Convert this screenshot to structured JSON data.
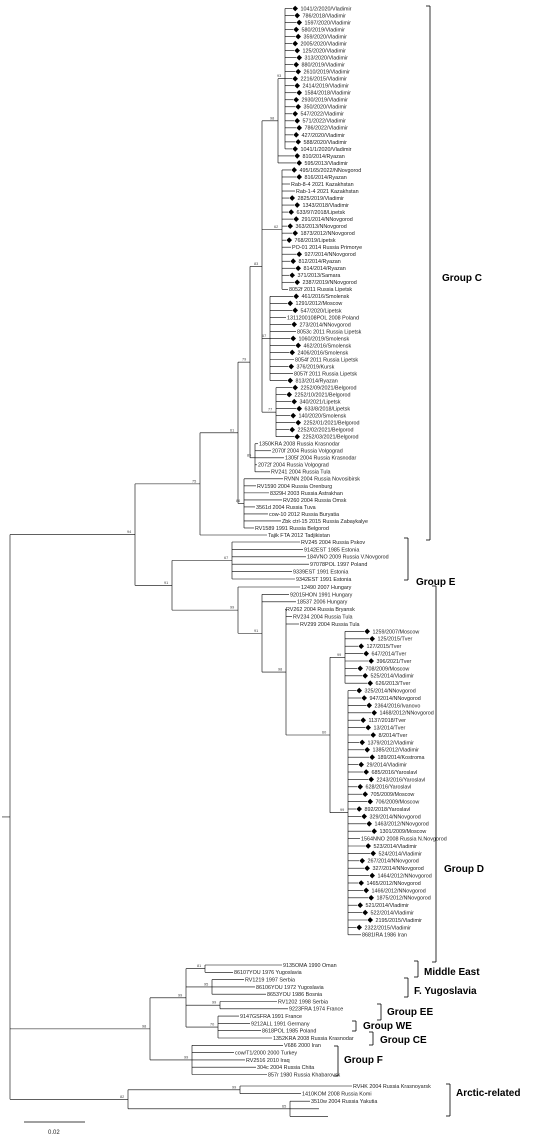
{
  "groups": [
    {
      "name": "Group C"
    },
    {
      "name": "Group E"
    },
    {
      "name": "Group D"
    },
    {
      "name": "Middle East"
    },
    {
      "name": "F. Yugoslavia"
    },
    {
      "name": "Group EE"
    },
    {
      "name": "Group WE"
    },
    {
      "name": "Group CE"
    },
    {
      "name": "Group F"
    },
    {
      "name": "Arctic-related"
    }
  ],
  "scale_label": "0.02",
  "taxa": [
    {
      "name": "1041/2/2020/Vladimir",
      "marked": true
    },
    {
      "name": "786/2018/Vladimir",
      "marked": true
    },
    {
      "name": "1597/2020/Vladimir",
      "marked": true
    },
    {
      "name": "580/2019/Vladimir",
      "marked": true
    },
    {
      "name": "359/2020/Vladimir",
      "marked": true
    },
    {
      "name": "2005/2020/Vladimir",
      "marked": true
    },
    {
      "name": "125/2020/Vladimir",
      "marked": true
    },
    {
      "name": "313/2020/Vladimir",
      "marked": true
    },
    {
      "name": "880/2019/Vladimir",
      "marked": true
    },
    {
      "name": "2610/2019/Vladimir",
      "marked": true
    },
    {
      "name": "2216/2015/Vladimir",
      "marked": true
    },
    {
      "name": "2414/2019/Vladimir",
      "marked": true
    },
    {
      "name": "1584/2018/Vladimir",
      "marked": true
    },
    {
      "name": "2930/2019/Vladimir",
      "marked": true
    },
    {
      "name": "350/2020/Vladimir",
      "marked": true
    },
    {
      "name": "547/2022/Vladimir",
      "marked": true
    },
    {
      "name": "571/2022/Vladimir",
      "marked": true
    },
    {
      "name": "786/2022/Vladimir",
      "marked": true
    },
    {
      "name": "427/2020/Vladimir",
      "marked": true
    },
    {
      "name": "588/2020/Vladimir",
      "marked": true
    },
    {
      "name": "1041/1/2020/Vladimir",
      "marked": true
    },
    {
      "name": "810/2014/Ryazan",
      "marked": true
    },
    {
      "name": "595/2013/Vladimir",
      "marked": true
    },
    {
      "name": "495/165/2022/NNovgorod",
      "marked": true
    },
    {
      "name": "816/2014/Ryazan",
      "marked": true
    },
    {
      "name": "Rab-8-4 2021 Kazakhstan",
      "marked": false
    },
    {
      "name": "Rab-1-4 2021 Kazakhstan",
      "marked": false
    },
    {
      "name": "2825/2019/Vladimir",
      "marked": true
    },
    {
      "name": "1343/2018/Vladimir",
      "marked": true
    },
    {
      "name": "633/97/2018/Lipetsk",
      "marked": true
    },
    {
      "name": "291/2014/NNovgorod",
      "marked": true
    },
    {
      "name": "363/2013/NNovgorod",
      "marked": true
    },
    {
      "name": "1873/2012/NNovgorod",
      "marked": true
    },
    {
      "name": "768/2019/Lipetsk",
      "marked": true
    },
    {
      "name": "PO-01 2014 Russia Primorye",
      "marked": false
    },
    {
      "name": "927/2014/NNovgorod",
      "marked": true
    },
    {
      "name": "812/2014/Ryazan",
      "marked": true
    },
    {
      "name": "814/2014/Ryazan",
      "marked": true
    },
    {
      "name": "371/2013/Samara",
      "marked": true
    },
    {
      "name": "2387/2019/NNovgorod",
      "marked": true
    },
    {
      "name": "8052f 2011 Russia Lipetsk",
      "marked": false
    },
    {
      "name": "461/2016/Smolensk",
      "marked": true
    },
    {
      "name": "1291/2012/Moscow",
      "marked": true
    },
    {
      "name": "547/2020/Lipetsk",
      "marked": true
    },
    {
      "name": "1311200108POL 2008 Poland",
      "marked": false
    },
    {
      "name": "273/2014/NNovgorod",
      "marked": true
    },
    {
      "name": "8053c 2011 Russia Lipetsk",
      "marked": false
    },
    {
      "name": "1060/2019/Smolensk",
      "marked": true
    },
    {
      "name": "462/2016/Smolensk",
      "marked": true
    },
    {
      "name": "2406/2016/Smolensk",
      "marked": true
    },
    {
      "name": "8054f 2011 Russia Lipetsk",
      "marked": false
    },
    {
      "name": "376/2019/Kursk",
      "marked": true
    },
    {
      "name": "8057f 2011 Russia Lipetsk",
      "marked": false
    },
    {
      "name": "813/2014/Ryazan",
      "marked": true
    },
    {
      "name": "2252/09/2021/Belgorod",
      "marked": true
    },
    {
      "name": "2252/10/2021/Belgorod",
      "marked": true
    },
    {
      "name": "340/2021/Lipetsk",
      "marked": true
    },
    {
      "name": "633/8/2018/Lipetsk",
      "marked": true
    },
    {
      "name": "140/2020/Smolensk",
      "marked": true
    },
    {
      "name": "2252/01/2021/Belgorod",
      "marked": true
    },
    {
      "name": "2252/02/2021/Belgorod",
      "marked": true
    },
    {
      "name": "2252/03/2021/Belgorod",
      "marked": true
    },
    {
      "name": "1350KRA 2008 Russia Krasnodar",
      "marked": false
    },
    {
      "name": "2070f 2004 Russia Volgograd",
      "marked": false
    },
    {
      "name": "1305f 2004 Russia Krasnodar",
      "marked": false
    },
    {
      "name": "2072f 2004 Russia Volgograd",
      "marked": false
    },
    {
      "name": "RV241 2004 Russia Tula",
      "marked": false
    },
    {
      "name": "RVNN 2004 Russia Novosibirsk",
      "marked": false
    },
    {
      "name": "RV1590 2004 Russia Orenburg",
      "marked": false
    },
    {
      "name": "8329H 2003 Russia Astrakhan",
      "marked": false
    },
    {
      "name": "RV260 2004 Russia Omsk",
      "marked": false
    },
    {
      "name": "3561d 2004 Russia Tuva",
      "marked": false
    },
    {
      "name": "cow-10 2012 Russia Buryatia",
      "marked": false
    },
    {
      "name": "Zbk ctrl-15 2015 Russia Zabaykalye",
      "marked": false
    },
    {
      "name": "RV1589 1991 Russia Belgorod",
      "marked": false
    },
    {
      "name": "Tajik FTA 2012 Tadjikistan",
      "marked": false
    },
    {
      "name": "RV245 2004 Russia Pskov",
      "marked": false
    },
    {
      "name": "9142EST 1985 Estonia",
      "marked": false
    },
    {
      "name": "184VNO 2009 Russia V.Novgorod",
      "marked": false
    },
    {
      "name": "97078POL 1997 Poland",
      "marked": false
    },
    {
      "name": "9339EST 1991 Estonia",
      "marked": false
    },
    {
      "name": "9342EST 1991 Estonia",
      "marked": false
    },
    {
      "name": "12490 2007 Hungary",
      "marked": false
    },
    {
      "name": "92015HON 1991 Hungary",
      "marked": false
    },
    {
      "name": "18537 2006 Hungary",
      "marked": false
    },
    {
      "name": "RV262 2004 Russia Bryansk",
      "marked": false
    },
    {
      "name": "RV234 2004 Russia Tula",
      "marked": false
    },
    {
      "name": "RV299 2004 Russia Tula",
      "marked": false
    },
    {
      "name": "1259/2007/Moscow",
      "marked": true
    },
    {
      "name": "125/2015/Tver",
      "marked": true
    },
    {
      "name": "127/2015/Tver",
      "marked": true
    },
    {
      "name": "647/2014/Tver",
      "marked": true
    },
    {
      "name": "396/2021/Tver",
      "marked": true
    },
    {
      "name": "708/2009/Moscow",
      "marked": true
    },
    {
      "name": "525/2014/Vladimir",
      "marked": true
    },
    {
      "name": "626/2013/Tver",
      "marked": true
    },
    {
      "name": "325/2014/NNovgorod",
      "marked": true
    },
    {
      "name": "947/2014/NNovgorod",
      "marked": true
    },
    {
      "name": "2364/2016/Ivanovo",
      "marked": true
    },
    {
      "name": "1468/2012/NNovgorod",
      "marked": true
    },
    {
      "name": "1137/2018/Tver",
      "marked": true
    },
    {
      "name": "13/2014/Tver",
      "marked": true
    },
    {
      "name": "8/2014/Tver",
      "marked": true
    },
    {
      "name": "1379/2012/Vladimir",
      "marked": true
    },
    {
      "name": "1385/2012/Vladimir",
      "marked": true
    },
    {
      "name": "189/2014/Kostroma",
      "marked": true
    },
    {
      "name": "29/2014/Vladimir",
      "marked": true
    },
    {
      "name": "685/2016/Yaroslavl",
      "marked": true
    },
    {
      "name": "2243/2016/Yaroslavl",
      "marked": true
    },
    {
      "name": "628/2016/Yaroslavl",
      "marked": true
    },
    {
      "name": "705/2009/Moscow",
      "marked": true
    },
    {
      "name": "706/2009/Moscow",
      "marked": true
    },
    {
      "name": "892/2018/Yaroslavl",
      "marked": true
    },
    {
      "name": "329/2014/NNovgorod",
      "marked": true
    },
    {
      "name": "1463/2012/NNovgorod",
      "marked": true
    },
    {
      "name": "1301/2009/Moscow",
      "marked": true
    },
    {
      "name": "1564NNO 2008 Russia N.Novgorod",
      "marked": false
    },
    {
      "name": "523/2014/Vladimir",
      "marked": true
    },
    {
      "name": "524/2014/Vladimir",
      "marked": true
    },
    {
      "name": "267/2014/NNovgorod",
      "marked": true
    },
    {
      "name": "327/2014/NNovgorod",
      "marked": true
    },
    {
      "name": "1464/2012/NNovgorod",
      "marked": true
    },
    {
      "name": "1465/2012/NNovgorod",
      "marked": true
    },
    {
      "name": "1466/2012/NNovgorod",
      "marked": true
    },
    {
      "name": "1875/2012/NNovgorod",
      "marked": true
    },
    {
      "name": "521/2014/Vladimir",
      "marked": true
    },
    {
      "name": "522/2014/Vladimir",
      "marked": true
    },
    {
      "name": "2195/2015/Vladimir",
      "marked": true
    },
    {
      "name": "2322/2015/Vladimir",
      "marked": true
    },
    {
      "name": "8681IRA 1986 Iran",
      "marked": false
    },
    {
      "name": "9135OMA 1990 Oman",
      "marked": false
    },
    {
      "name": "86107YOU 1976 Yugoslavia",
      "marked": false
    },
    {
      "name": "RV1219 1997 Serbia",
      "marked": false
    },
    {
      "name": "86106YOU 1972 Yugoslavia",
      "marked": false
    },
    {
      "name": "8653YOU 1986 Bosnia",
      "marked": false
    },
    {
      "name": "RV1202 1998 Serbia",
      "marked": false
    },
    {
      "name": "9223FRA 1974 France",
      "marked": false
    },
    {
      "name": "9147GSFRA 1991 France",
      "marked": false
    },
    {
      "name": "9212ALL 1991 Germany",
      "marked": false
    },
    {
      "name": "8618POL 1985 Poland",
      "marked": false
    },
    {
      "name": "1352KRA 2008 Russia Krasnodar",
      "marked": false
    },
    {
      "name": "V686 2000 Iran",
      "marked": false
    },
    {
      "name": "cow/T1/2000 2000 Turkey",
      "marked": false
    },
    {
      "name": "RV2516 2010 Iraq",
      "marked": false
    },
    {
      "name": "304c 2004 Russia Chita",
      "marked": false
    },
    {
      "name": "857r 1980 Russia Khabarovsk",
      "marked": false
    },
    {
      "name": "RVHK 2004 Russia Krasnoyarsk",
      "marked": false
    },
    {
      "name": "1410KOM 2008 Russia Komi",
      "marked": false
    },
    {
      "name": "3510w 2004 Russia Yakutia",
      "marked": false
    }
  ],
  "bootstrap": [
    "93",
    "98",
    "62",
    "67",
    "77",
    "83",
    "85",
    "79",
    "86",
    "61",
    "75",
    "67",
    "99",
    "99",
    "60",
    "98",
    "91",
    "99",
    "91",
    "94",
    "81",
    "95",
    "99",
    "70",
    "99",
    "99",
    "98",
    "99",
    "65",
    "82",
    "78",
    "99",
    "99",
    "72",
    "99",
    "99",
    "95",
    "76",
    "70",
    "94",
    "99",
    "97"
  ]
}
